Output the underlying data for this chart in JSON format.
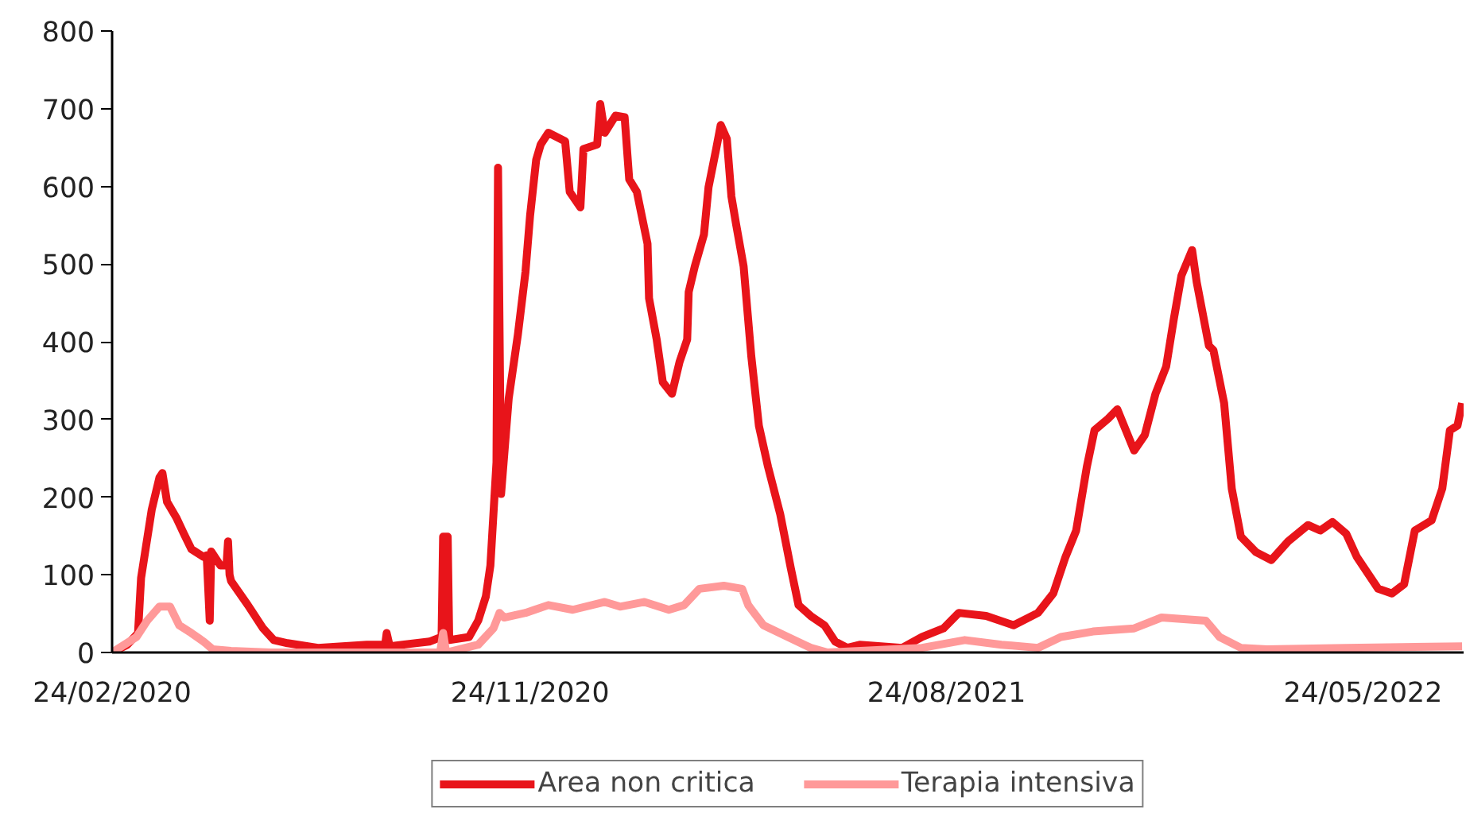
{
  "chart_data": {
    "type": "line",
    "xlim": [
      "2020-02-24",
      "2022-07-29"
    ],
    "xticks": [
      {
        "value": "2020-02-24",
        "label": "24/02/2020"
      },
      {
        "value": "2020-11-24",
        "label": "24/11/2020"
      },
      {
        "value": "2021-08-24",
        "label": "24/08/2021"
      },
      {
        "value": "2022-05-24",
        "label": "24/05/2022"
      }
    ],
    "ylim": [
      0,
      800
    ],
    "yticks": [
      0,
      100,
      200,
      300,
      400,
      500,
      600,
      700,
      800
    ],
    "legend": "bottom",
    "line_style": "solid",
    "marker": "none",
    "series": [
      {
        "name": "Area non critica",
        "color": "#e8141a",
        "x": [
          "2020-02-24",
          "2020-03-05",
          "2020-03-12",
          "2020-03-14",
          "2020-03-21",
          "2020-03-26",
          "2020-03-28",
          "2020-03-31",
          "2020-04-06",
          "2020-04-11",
          "2020-04-16",
          "2020-04-24",
          "2020-04-26",
          "2020-04-28",
          "2020-04-29",
          "2020-05-05",
          "2020-05-09",
          "2020-05-10",
          "2020-05-11",
          "2020-05-12",
          "2020-05-23",
          "2020-06-02",
          "2020-06-09",
          "2020-06-18",
          "2020-07-08",
          "2020-08-09",
          "2020-08-21",
          "2020-08-22",
          "2020-08-24",
          "2020-09-19",
          "2020-09-27",
          "2020-09-28",
          "2020-10-01",
          "2020-10-02",
          "2020-10-15",
          "2020-10-21",
          "2020-10-26",
          "2020-10-29",
          "2020-11-02",
          "2020-11-03",
          "2020-11-05",
          "2020-11-10",
          "2020-11-16",
          "2020-11-21",
          "2020-11-24",
          "2020-11-28",
          "2020-12-01",
          "2020-12-06",
          "2020-12-17",
          "2020-12-20",
          "2020-12-27",
          "2020-12-29",
          "2021-01-07",
          "2021-01-09",
          "2021-01-12",
          "2021-01-19",
          "2021-01-25",
          "2021-01-28",
          "2021-02-02",
          "2021-02-09",
          "2021-02-10",
          "2021-02-15",
          "2021-02-19",
          "2021-02-25",
          "2021-03-02",
          "2021-03-07",
          "2021-03-08",
          "2021-03-12",
          "2021-03-18",
          "2021-03-21",
          "2021-03-26",
          "2021-03-29",
          "2021-04-02",
          "2021-04-05",
          "2021-04-08",
          "2021-04-13",
          "2021-04-18",
          "2021-04-23",
          "2021-04-29",
          "2021-05-07",
          "2021-05-14",
          "2021-05-19",
          "2021-05-27",
          "2021-06-05",
          "2021-06-12",
          "2021-06-20",
          "2021-06-28",
          "2021-07-26",
          "2021-08-08",
          "2021-08-22",
          "2021-09-01",
          "2021-09-19",
          "2021-10-07",
          "2021-10-23",
          "2021-11-02",
          "2021-11-10",
          "2021-11-17",
          "2021-11-24",
          "2021-11-29",
          "2021-12-08",
          "2021-12-14",
          "2021-12-25",
          "2022-01-01",
          "2022-01-08",
          "2022-01-15",
          "2022-01-20",
          "2022-01-25",
          "2022-02-01",
          "2022-02-04",
          "2022-02-12",
          "2022-02-15",
          "2022-02-22",
          "2022-02-27",
          "2022-03-05",
          "2022-03-15",
          "2022-03-25",
          "2022-04-05",
          "2022-04-18",
          "2022-04-26",
          "2022-05-04",
          "2022-05-13",
          "2022-05-20",
          "2022-06-03",
          "2022-06-12",
          "2022-06-20",
          "2022-06-27",
          "2022-07-08",
          "2022-07-15",
          "2022-07-20",
          "2022-07-25",
          "2022-07-28"
        ],
        "values": [
          0,
          10,
          25,
          96,
          184,
          225,
          231,
          194,
          174,
          153,
          133,
          123,
          125,
          41,
          130,
          112,
          112,
          143,
          100,
          92,
          61,
          31,
          16,
          12,
          6,
          10,
          10,
          25,
          8,
          14,
          20,
          149,
          149,
          16,
          20,
          41,
          72,
          112,
          245,
          624,
          204,
          327,
          409,
          490,
          562,
          634,
          654,
          669,
          658,
          593,
          573,
          648,
          654,
          706,
          669,
          691,
          689,
          609,
          593,
          526,
          456,
          403,
          348,
          333,
          374,
          403,
          464,
          497,
          538,
          599,
          648,
          679,
          661,
          587,
          552,
          497,
          382,
          292,
          239,
          178,
          108,
          61,
          47,
          35,
          14,
          6,
          10,
          6,
          20,
          31,
          51,
          47,
          35,
          51,
          76,
          123,
          157,
          239,
          286,
          301,
          313,
          260,
          280,
          333,
          368,
          429,
          485,
          518,
          477,
          395,
          389,
          321,
          211,
          149,
          129,
          119,
          143,
          164,
          157,
          168,
          153,
          123,
          82,
          76,
          88,
          157,
          170,
          211,
          286,
          292,
          321
        ]
      },
      {
        "name": "Terapia intensiva",
        "color": "#ff9999",
        "x": [
          "2020-02-24",
          "2020-03-11",
          "2020-03-18",
          "2020-03-26",
          "2020-04-02",
          "2020-04-08",
          "2020-04-16",
          "2020-04-24",
          "2020-04-30",
          "2020-05-12",
          "2020-06-07",
          "2020-09-26",
          "2020-09-28",
          "2020-09-30",
          "2020-10-21",
          "2020-10-31",
          "2020-11-04",
          "2020-11-07",
          "2020-11-21",
          "2020-12-06",
          "2020-12-22",
          "2021-01-12",
          "2021-01-22",
          "2021-02-07",
          "2021-02-23",
          "2021-03-05",
          "2021-03-15",
          "2021-03-31",
          "2021-04-12",
          "2021-04-16",
          "2021-04-26",
          "2021-05-12",
          "2021-05-27",
          "2021-06-07",
          "2021-08-08",
          "2021-09-05",
          "2021-09-29",
          "2021-10-23",
          "2021-11-07",
          "2021-11-28",
          "2021-12-25",
          "2022-01-12",
          "2022-02-10",
          "2022-02-19",
          "2022-03-05",
          "2022-03-22",
          "2022-05-13",
          "2022-07-28"
        ],
        "values": [
          0,
          20,
          41,
          59,
          59,
          35,
          25,
          14,
          4,
          2,
          0,
          0,
          25,
          0,
          10,
          31,
          51,
          45,
          51,
          61,
          55,
          65,
          59,
          65,
          55,
          61,
          82,
          86,
          82,
          61,
          35,
          20,
          6,
          0,
          6,
          16,
          10,
          6,
          20,
          27,
          31,
          45,
          41,
          20,
          6,
          4,
          6,
          8
        ]
      }
    ]
  }
}
